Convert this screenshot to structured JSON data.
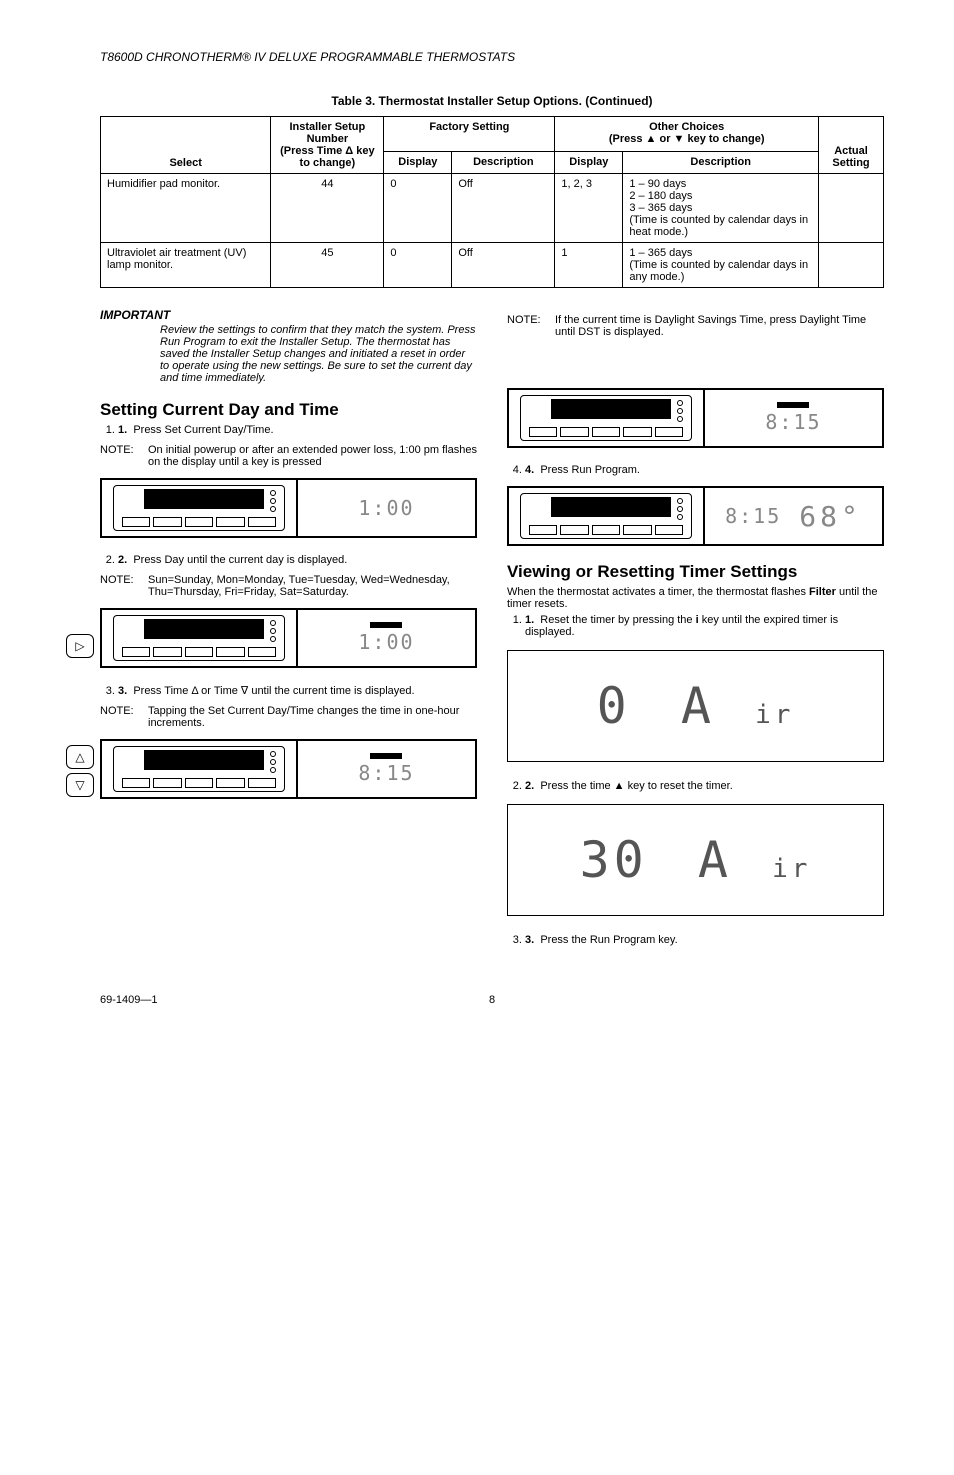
{
  "header": "T8600D CHRONOTHERM® IV DELUXE PROGRAMMABLE THERMOSTATS",
  "table_caption": "Table 3. Thermostat Installer Setup Options. (Continued)",
  "table": {
    "col_headers": {
      "select": "Select",
      "installer": "Installer Setup Number",
      "installer_sub": "(Press Time Δ key to change)",
      "factory": "Factory Setting",
      "other": "Other Choices",
      "other_sub": "(Press ▲ or ▼ key to change)",
      "display": "Display",
      "description": "Description",
      "actual": "Actual Setting"
    },
    "rows": [
      {
        "select": "Humidifier pad monitor.",
        "number": "44",
        "fdisplay": "0",
        "fdesc": "Off",
        "odisplay": "1, 2, 3",
        "odesc": "1 – 90 days\n2 – 180 days\n3 – 365 days\n(Time is counted by calendar days in heat mode.)",
        "actual": ""
      },
      {
        "select": "Ultraviolet air treatment (UV) lamp monitor.",
        "number": "45",
        "fdisplay": "0",
        "fdesc": "Off",
        "odisplay": "1",
        "odesc": "1 – 365 days\n(Time is counted by calendar days in any mode.)",
        "actual": ""
      }
    ]
  },
  "left_col": {
    "important_label": "IMPORTANT",
    "important_text": "Review the settings to confirm that they match the system. Press Run Program to exit the Installer Setup. The thermostat has saved the Installer Setup changes and initiated a reset in order to operate using the new settings. Be sure to set the current day and time immediately.",
    "heading1": "Setting Current Day and Time",
    "step1": "Press Set Current Day/Time.",
    "note1": "On initial powerup or after an extended power loss, 1:00 pm flashes on the display until a key is pressed",
    "display1": "1:00",
    "step2": "Press Day until the current day is displayed.",
    "note2": "Sun=Sunday, Mon=Monday, Tue=Tuesday, Wed=Wednesday, Thu=Thursday, Fri=Friday, Sat=Saturday.",
    "display2": "1:00",
    "step3": "Press Time Δ or Time ∇ until the current time is displayed.",
    "note3": "Tapping the Set Current Day/Time changes the time in one-hour increments.",
    "display3": "8:15"
  },
  "right_col": {
    "note_top": "If the current time is Daylight Savings Time, press Daylight Time until DST is displayed.",
    "display1": "8:15",
    "step4": "Press Run Program.",
    "display2a": "8:15",
    "display2b": "68°",
    "heading2": "Viewing or Resetting Timer Settings",
    "intro": "When the thermostat activates a timer, the thermostat flashes Filter until the timer resets.",
    "filter_word": "Filter",
    "step1r": "Reset the timer by pressing the i key until the expired timer is displayed.",
    "big1a": "0",
    "big1b": "A",
    "big1c": "ir",
    "step2r": "Press the time ▲ key to reset the timer.",
    "big2a": "30",
    "big2b": "A",
    "big2c": "ir",
    "step3r": "Press the Run Program key."
  },
  "footer_left": "69-1409—1",
  "footer_page": "8",
  "note_label": "NOTE:"
}
